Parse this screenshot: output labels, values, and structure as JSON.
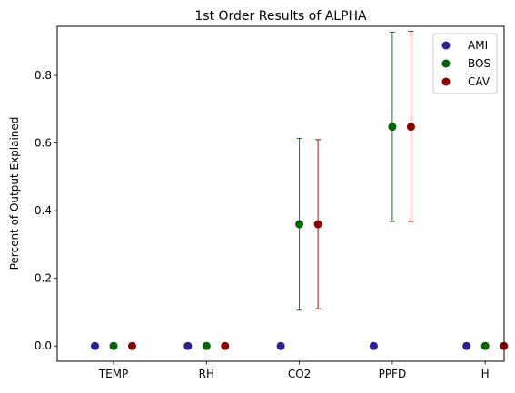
{
  "chart_data": {
    "type": "scatter",
    "title": "1st Order Results of ALPHA",
    "xlabel": "",
    "ylabel": "Percent of Output Explained",
    "categories": [
      "TEMP",
      "RH",
      "CO2",
      "PPFD",
      "H"
    ],
    "ylim": [
      -0.045,
      0.945
    ],
    "yticks": [
      0.0,
      0.2,
      0.4,
      0.6,
      0.8
    ],
    "ytick_labels": [
      "0.0",
      "0.2",
      "0.4",
      "0.6",
      "0.8"
    ],
    "grid": false,
    "legend_position": "top-right",
    "series": [
      {
        "name": "AMI",
        "color": "#2a1f96",
        "values": [
          0.0,
          0.0,
          0.0,
          0.0,
          0.0
        ],
        "errors": [
          null,
          null,
          null,
          null,
          null
        ]
      },
      {
        "name": "BOS",
        "color": "#006400",
        "values": [
          0.0,
          0.0,
          0.36,
          0.648,
          0.0
        ],
        "errors": [
          null,
          null,
          [
            0.106,
            0.614
          ],
          [
            0.368,
            0.928
          ],
          null
        ]
      },
      {
        "name": "CAV",
        "color": "#8b0000",
        "values": [
          0.0,
          0.0,
          0.36,
          0.648,
          0.0
        ],
        "errors": [
          null,
          null,
          [
            0.11,
            0.61
          ],
          [
            0.368,
            0.93
          ],
          null
        ]
      }
    ]
  }
}
